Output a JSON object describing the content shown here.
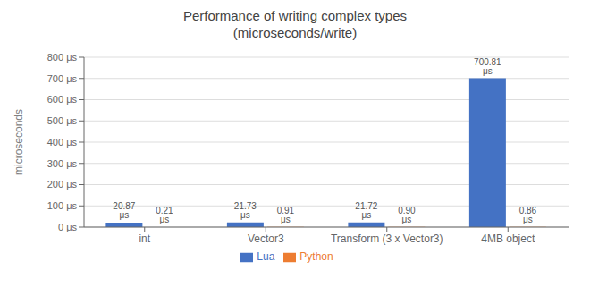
{
  "chart_data": {
    "type": "bar",
    "title": "Performance of writing complex types\n(microseconds/write)",
    "categories": [
      "int",
      "Vector3",
      "Transform (3 x Vector3)",
      "4MB object"
    ],
    "series": [
      {
        "name": "Lua",
        "color": "#4472C4",
        "values": [
          20.87,
          21.73,
          21.72,
          700.81
        ],
        "value_labels": [
          "20.87 μs",
          "21.73 μs",
          "21.72 μs",
          "700.81 μs"
        ]
      },
      {
        "name": "Python",
        "color": "#ED7D31",
        "values": [
          0.21,
          0.91,
          0.9,
          0.86
        ],
        "value_labels": [
          "0.21 μs",
          "0.91 μs",
          "0.90 μs",
          "0.86 μs"
        ]
      }
    ],
    "ylabel": "microseconds",
    "ylim": [
      0,
      800
    ],
    "yticks": [
      {
        "value": 0,
        "label": "0 μs"
      },
      {
        "value": 100,
        "label": "100 μs"
      },
      {
        "value": 200,
        "label": "200 μs"
      },
      {
        "value": 300,
        "label": "300 μs"
      },
      {
        "value": 400,
        "label": "400 μs"
      },
      {
        "value": 500,
        "label": "500 μs"
      },
      {
        "value": 600,
        "label": "600 μs"
      },
      {
        "value": 700,
        "label": "700 μs"
      },
      {
        "value": 800,
        "label": "800 μs"
      }
    ],
    "grid": true,
    "legend": "bottom",
    "data_labels": true
  }
}
